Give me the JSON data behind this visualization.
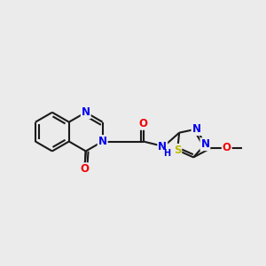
{
  "bg_color": "#ebebeb",
  "bond_color": "#1a1a1a",
  "bond_width": 1.5,
  "atom_colors": {
    "N": "#0000ee",
    "O": "#ee0000",
    "S": "#bbbb00",
    "C": "#1a1a1a"
  },
  "font_size": 8.5,
  "fig_size": [
    3.0,
    3.0
  ],
  "dpi": 100,
  "xlim": [
    0.0,
    10.5
  ],
  "ylim": [
    1.5,
    8.0
  ]
}
